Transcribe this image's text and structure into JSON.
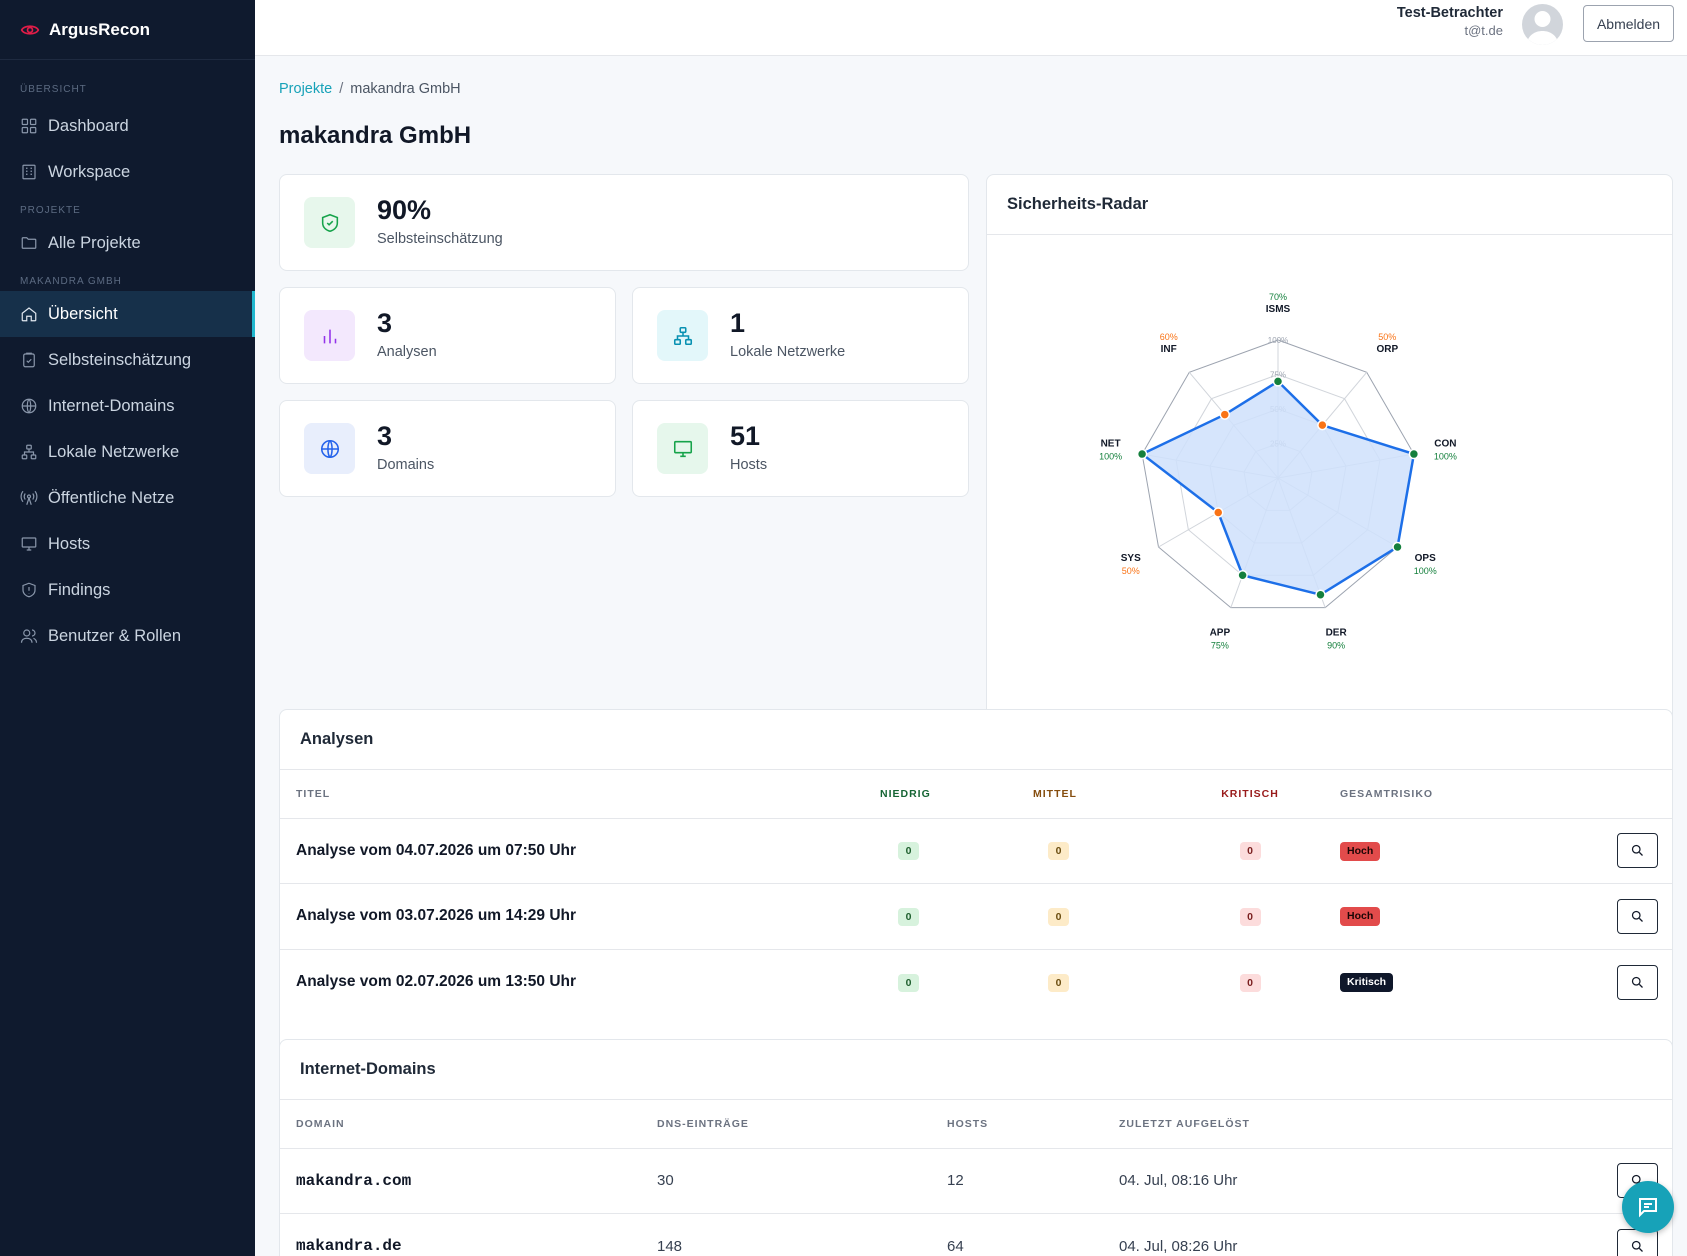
{
  "app": {
    "name": "ArgusRecon"
  },
  "sidebar": {
    "sections": [
      {
        "label": "ÜBERSICHT",
        "items": [
          {
            "label": "Dashboard",
            "icon": "grid-icon"
          },
          {
            "label": "Workspace",
            "icon": "building-icon"
          }
        ]
      },
      {
        "label": "PROJEKTE",
        "items": [
          {
            "label": "Alle Projekte",
            "icon": "folder-icon"
          }
        ]
      },
      {
        "label": "MAKANDRA GMBH",
        "items": [
          {
            "label": "Übersicht",
            "icon": "home-icon",
            "active": true
          },
          {
            "label": "Selbsteinschätzung",
            "icon": "clipboard-icon"
          },
          {
            "label": "Internet-Domains",
            "icon": "globe-icon"
          },
          {
            "label": "Lokale Netzwerke",
            "icon": "network-icon"
          },
          {
            "label": "Öffentliche Netze",
            "icon": "antenna-icon"
          },
          {
            "label": "Hosts",
            "icon": "monitor-icon"
          },
          {
            "label": "Findings",
            "icon": "shield-icon"
          },
          {
            "label": "Benutzer & Rollen",
            "icon": "users-icon"
          }
        ]
      }
    ]
  },
  "header": {
    "user_name": "Test-Betrachter",
    "user_email": "t@t.de",
    "logout_label": "Abmelden"
  },
  "breadcrumb": {
    "parent": "Projekte",
    "separator": "/",
    "current": "makandra GmbH"
  },
  "page_title": "makandra GmbH",
  "stats": {
    "self": {
      "value": "90%",
      "label": "Selbsteinschätzung"
    },
    "analyses": {
      "value": "3",
      "label": "Analysen"
    },
    "networks": {
      "value": "1",
      "label": "Lokale Netzwerke"
    },
    "domains": {
      "value": "3",
      "label": "Domains"
    },
    "hosts": {
      "value": "51",
      "label": "Hosts"
    }
  },
  "radar": {
    "title": "Sicherheits-Radar",
    "ring_labels": [
      "25%",
      "50%",
      "75%",
      "100%"
    ],
    "axes": [
      {
        "name": "ISMS",
        "value": 70,
        "label": "70%",
        "color": "#15803d"
      },
      {
        "name": "ORP",
        "value": 50,
        "label": "50%",
        "color": "#f97316"
      },
      {
        "name": "CON",
        "value": 100,
        "label": "100%",
        "color": "#15803d"
      },
      {
        "name": "OPS",
        "value": 100,
        "label": "100%",
        "color": "#15803d"
      },
      {
        "name": "DER",
        "value": 90,
        "label": "90%",
        "color": "#15803d"
      },
      {
        "name": "APP",
        "value": 75,
        "label": "75%",
        "color": "#15803d"
      },
      {
        "name": "SYS",
        "value": 50,
        "label": "50%",
        "color": "#f97316"
      },
      {
        "name": "NET",
        "value": 100,
        "label": "100%",
        "color": "#15803d"
      },
      {
        "name": "INF",
        "value": 60,
        "label": "60%",
        "color": "#f97316"
      }
    ]
  },
  "analyses": {
    "title": "Analysen",
    "columns": {
      "title": "TITEL",
      "low": "NIEDRIG",
      "mid": "MITTEL",
      "crit": "KRITISCH",
      "risk": "GESAMTRISIKO"
    },
    "rows": [
      {
        "title": "Analyse vom 04.07.2026 um 07:50 Uhr",
        "low": "0",
        "mid": "0",
        "crit": "0",
        "risk": "Hoch"
      },
      {
        "title": "Analyse vom 03.07.2026 um 14:29 Uhr",
        "low": "0",
        "mid": "0",
        "crit": "0",
        "risk": "Hoch"
      },
      {
        "title": "Analyse vom 02.07.2026 um 13:50 Uhr",
        "low": "0",
        "mid": "0",
        "crit": "0",
        "risk": "Kritisch"
      }
    ]
  },
  "domains": {
    "title": "Internet-Domains",
    "columns": {
      "domain": "DOMAIN",
      "dns": "DNS-EINTRÄGE",
      "hosts": "HOSTS",
      "resolved": "ZULETZT AUFGELÖST"
    },
    "rows": [
      {
        "domain": "makandra.com",
        "dns": "30",
        "hosts": "12",
        "resolved": "04. Jul, 08:16 Uhr"
      },
      {
        "domain": "makandra.de",
        "dns": "148",
        "hosts": "64",
        "resolved": "04. Jul, 08:26 Uhr"
      }
    ]
  },
  "colors": {
    "sidebar_bg": "#0f1a2e",
    "accent": "#17a2b8",
    "radar_line": "#1d6fe8",
    "radar_fill": "#cfe0fb"
  }
}
